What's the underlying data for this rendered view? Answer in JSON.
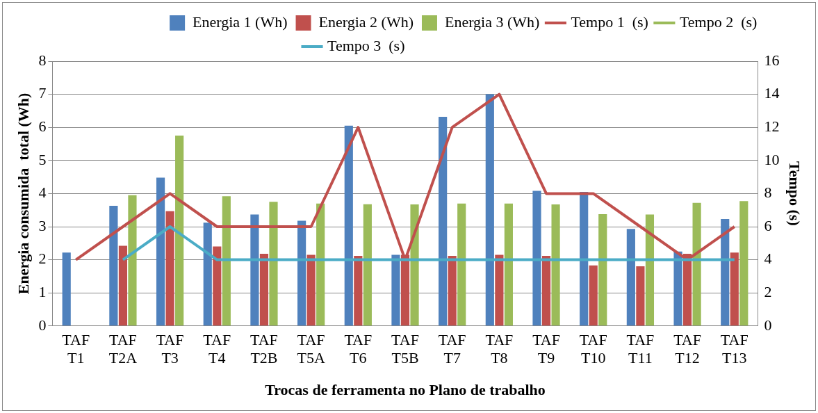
{
  "chart_data": {
    "type": "bar",
    "xlabel": "Trocas de ferramenta no Plano de trabalho",
    "ylabel": "Energia consumida  total (Wh)",
    "y2label": "Tempo (s)",
    "categories": [
      "TAF T1",
      "TAF T2A",
      "TAF T3",
      "TAF T4",
      "TAF T2B",
      "TAF T5A",
      "TAF T6",
      "TAF T5B",
      "TAF T7",
      "TAF T8",
      "TAF T9",
      "TAF T10",
      "TAF T11",
      "TAF T12",
      "TAF T13"
    ],
    "series": [
      {
        "name": "Energia 1 (Wh)",
        "color": "#4f81bd",
        "values": [
          2.22,
          3.63,
          4.48,
          3.12,
          3.37,
          3.18,
          6.05,
          2.15,
          6.32,
          7.0,
          4.08,
          4.05,
          2.93,
          2.25,
          3.23
        ]
      },
      {
        "name": "Energia 2 (Wh)",
        "color": "#c0504d",
        "values": [
          null,
          2.42,
          3.47,
          2.4,
          2.18,
          2.15,
          2.12,
          2.15,
          2.12,
          2.15,
          2.12,
          1.83,
          1.8,
          2.18,
          2.22
        ]
      },
      {
        "name": "Energia 3 (Wh)",
        "color": "#9bbb59",
        "values": [
          null,
          3.95,
          5.75,
          3.92,
          3.75,
          3.7,
          3.68,
          3.67,
          3.7,
          3.7,
          3.67,
          3.38,
          3.37,
          3.72,
          3.77
        ]
      },
      {
        "name": "Tempo 1  (s)",
        "type": "line",
        "axis": "y2",
        "color": "#c0504d",
        "values": [
          4,
          6,
          8,
          6,
          6,
          6,
          12,
          4,
          12,
          14,
          8,
          8,
          6,
          4,
          6
        ]
      },
      {
        "name": "Tempo 2  (s)",
        "type": "line",
        "axis": "y2",
        "color": "#9bbb59",
        "values": [
          null,
          null,
          null,
          null,
          null,
          null,
          null,
          null,
          null,
          null,
          null,
          null,
          null,
          null,
          null
        ]
      },
      {
        "name": "Tempo 3  (s)",
        "type": "line",
        "axis": "y2",
        "color": "#4bacc6",
        "values": [
          null,
          4,
          6,
          4,
          4,
          4,
          4,
          4,
          4,
          4,
          4,
          4,
          4,
          4,
          4
        ]
      }
    ],
    "ylim": [
      0,
      8
    ],
    "yticks": [
      0,
      1,
      2,
      3,
      4,
      5,
      6,
      7,
      8
    ],
    "y2lim": [
      0,
      16
    ],
    "y2ticks": [
      0,
      2,
      4,
      6,
      8,
      10,
      12,
      14,
      16
    ],
    "grid": "y",
    "legend": "top",
    "marker": "none",
    "line_style": "solid"
  }
}
